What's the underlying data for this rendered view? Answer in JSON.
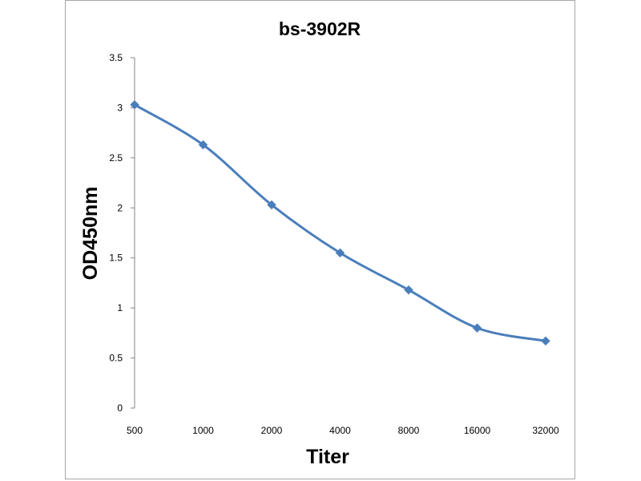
{
  "chart_data": {
    "type": "line",
    "title": "bs-3902R",
    "xlabel": "Titer",
    "ylabel": "OD450nm",
    "categories": [
      "500",
      "1000",
      "2000",
      "4000",
      "8000",
      "16000",
      "32000"
    ],
    "series": [
      {
        "values": [
          3.03,
          2.63,
          2.03,
          1.55,
          1.18,
          0.8,
          0.67
        ],
        "color": "#4a7ebb",
        "marker": "diamond"
      }
    ],
    "ylim": [
      0,
      3.5
    ],
    "yticks": [
      "0",
      "0.5",
      "1",
      "1.5",
      "2",
      "2.5",
      "3",
      "3.5"
    ],
    "grid": false,
    "legend": "none"
  }
}
